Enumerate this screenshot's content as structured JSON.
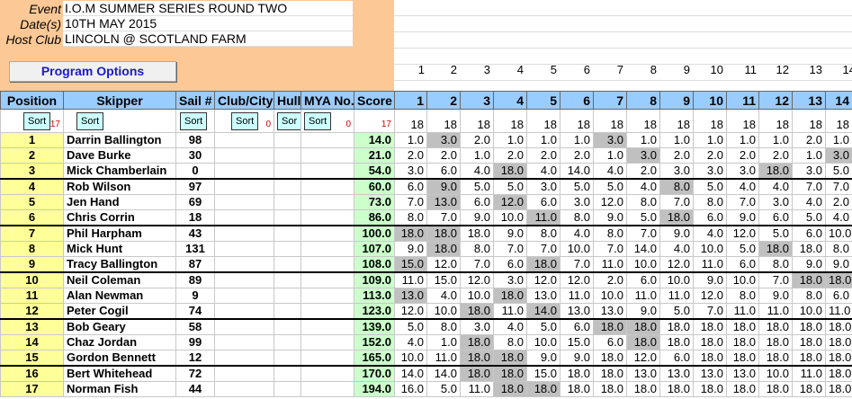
{
  "event": {
    "event_label": "Event",
    "event_value": "I.O.M SUMMER SERIES ROUND TWO",
    "date_label": "Date(s)",
    "date_value": "10TH MAY 2015",
    "host_label": "Host Club",
    "host_value": "LINCOLN @ SCOTLAND FARM"
  },
  "program_options": "Program Options",
  "race_numbers": [
    "1",
    "2",
    "3",
    "4",
    "5",
    "6",
    "7",
    "8",
    "9",
    "10",
    "11",
    "12",
    "13",
    "14"
  ],
  "headers": [
    "Position",
    "Skipper",
    "Sail #",
    "Club/City",
    "Hull",
    "MYA No.",
    "Score",
    "1",
    "2",
    "3",
    "4",
    "5",
    "6",
    "7",
    "8",
    "9",
    "10",
    "11",
    "12",
    "13",
    "14"
  ],
  "sort": {
    "label": "Sort",
    "hull_label": "Sor",
    "position_count": "17",
    "club_count": "0",
    "mya_count": "0",
    "score_count": "17",
    "race_entries": "18"
  },
  "colors": {
    "discard": "#c0c0c0",
    "header": "#99ccff",
    "position": "#ffff99",
    "score": "#ccffcc",
    "top_panel": "#fcc996"
  },
  "rows": [
    {
      "pos": "1",
      "skipper": "Darrin Ballington",
      "sail": "98",
      "score": "14.0",
      "races": [
        "1.0",
        "3.0",
        "2.0",
        "1.0",
        "1.0",
        "1.0",
        "3.0",
        "1.0",
        "1.0",
        "1.0",
        "1.0",
        "1.0",
        "2.0",
        "1.0"
      ],
      "discards": [
        2,
        7
      ]
    },
    {
      "pos": "2",
      "skipper": "Dave Burke",
      "sail": "30",
      "score": "21.0",
      "races": [
        "2.0",
        "2.0",
        "1.0",
        "2.0",
        "2.0",
        "2.0",
        "1.0",
        "3.0",
        "2.0",
        "2.0",
        "2.0",
        "2.0",
        "1.0",
        "3.0"
      ],
      "discards": [
        8,
        14
      ]
    },
    {
      "pos": "3",
      "skipper": "Mick Chamberlain",
      "sail": "0",
      "score": "54.0",
      "races": [
        "3.0",
        "6.0",
        "4.0",
        "18.0",
        "4.0",
        "14.0",
        "4.0",
        "2.0",
        "3.0",
        "3.0",
        "3.0",
        "18.0",
        "3.0",
        "5.0"
      ],
      "discards": [
        4,
        12
      ]
    },
    {
      "pos": "4",
      "skipper": "Rob Wilson",
      "sail": "97",
      "score": "60.0",
      "races": [
        "6.0",
        "9.0",
        "5.0",
        "5.0",
        "3.0",
        "5.0",
        "5.0",
        "4.0",
        "8.0",
        "5.0",
        "4.0",
        "4.0",
        "7.0",
        "7.0"
      ],
      "discards": [
        2,
        9
      ]
    },
    {
      "pos": "5",
      "skipper": "Jen Hand",
      "sail": "69",
      "score": "73.0",
      "races": [
        "7.0",
        "13.0",
        "6.0",
        "12.0",
        "6.0",
        "3.0",
        "12.0",
        "8.0",
        "7.0",
        "8.0",
        "7.0",
        "3.0",
        "4.0",
        "2.0"
      ],
      "discards": [
        2,
        4
      ]
    },
    {
      "pos": "6",
      "skipper": "Chris Corrin",
      "sail": "18",
      "score": "86.0",
      "races": [
        "8.0",
        "7.0",
        "9.0",
        "10.0",
        "11.0",
        "8.0",
        "9.0",
        "5.0",
        "18.0",
        "6.0",
        "9.0",
        "6.0",
        "5.0",
        "4.0"
      ],
      "discards": [
        5,
        9
      ]
    },
    {
      "pos": "7",
      "skipper": "Phil Harpham",
      "sail": "43",
      "score": "100.0",
      "races": [
        "18.0",
        "18.0",
        "18.0",
        "9.0",
        "8.0",
        "4.0",
        "8.0",
        "7.0",
        "9.0",
        "4.0",
        "12.0",
        "5.0",
        "6.0",
        "10.0"
      ],
      "discards": [
        1,
        2
      ]
    },
    {
      "pos": "8",
      "skipper": "Mick Hunt",
      "sail": "131",
      "score": "107.0",
      "races": [
        "9.0",
        "18.0",
        "8.0",
        "7.0",
        "7.0",
        "10.0",
        "7.0",
        "14.0",
        "4.0",
        "10.0",
        "5.0",
        "18.0",
        "18.0",
        "8.0"
      ],
      "discards": [
        2,
        12
      ]
    },
    {
      "pos": "9",
      "skipper": "Tracy Ballington",
      "sail": "87",
      "score": "108.0",
      "races": [
        "15.0",
        "12.0",
        "7.0",
        "6.0",
        "18.0",
        "7.0",
        "11.0",
        "10.0",
        "12.0",
        "11.0",
        "6.0",
        "8.0",
        "9.0",
        "9.0"
      ],
      "discards": [
        1,
        5
      ]
    },
    {
      "pos": "10",
      "skipper": "Neil Coleman",
      "sail": "89",
      "score": "109.0",
      "races": [
        "11.0",
        "15.0",
        "12.0",
        "3.0",
        "12.0",
        "12.0",
        "2.0",
        "6.0",
        "10.0",
        "9.0",
        "10.0",
        "7.0",
        "18.0",
        "18.0"
      ],
      "discards": [
        13,
        14
      ]
    },
    {
      "pos": "11",
      "skipper": "Alan Newman",
      "sail": "9",
      "score": "113.0",
      "races": [
        "13.0",
        "4.0",
        "10.0",
        "18.0",
        "13.0",
        "11.0",
        "10.0",
        "11.0",
        "11.0",
        "12.0",
        "8.0",
        "9.0",
        "8.0",
        "6.0"
      ],
      "discards": [
        1,
        4
      ]
    },
    {
      "pos": "12",
      "skipper": "Peter Cogil",
      "sail": "74",
      "score": "123.0",
      "races": [
        "12.0",
        "10.0",
        "18.0",
        "11.0",
        "14.0",
        "13.0",
        "13.0",
        "9.0",
        "5.0",
        "7.0",
        "11.0",
        "11.0",
        "10.0",
        "11.0"
      ],
      "discards": [
        3,
        5
      ]
    },
    {
      "pos": "13",
      "skipper": "Bob Geary",
      "sail": "58",
      "score": "139.0",
      "races": [
        "5.0",
        "8.0",
        "3.0",
        "4.0",
        "5.0",
        "6.0",
        "18.0",
        "18.0",
        "18.0",
        "18.0",
        "18.0",
        "18.0",
        "18.0",
        "18.0"
      ],
      "discards": [
        7,
        8
      ]
    },
    {
      "pos": "14",
      "skipper": "Chaz Jordan",
      "sail": "99",
      "score": "152.0",
      "races": [
        "4.0",
        "1.0",
        "18.0",
        "8.0",
        "10.0",
        "15.0",
        "6.0",
        "18.0",
        "18.0",
        "18.0",
        "18.0",
        "18.0",
        "18.0",
        "18.0"
      ],
      "discards": [
        3,
        8
      ]
    },
    {
      "pos": "15",
      "skipper": "Gordon Bennett",
      "sail": "12",
      "score": "165.0",
      "races": [
        "10.0",
        "11.0",
        "18.0",
        "18.0",
        "9.0",
        "9.0",
        "18.0",
        "12.0",
        "6.0",
        "18.0",
        "18.0",
        "18.0",
        "18.0",
        "18.0"
      ],
      "discards": [
        3,
        4
      ]
    },
    {
      "pos": "16",
      "skipper": "Bert Whitehead",
      "sail": "72",
      "score": "170.0",
      "races": [
        "14.0",
        "14.0",
        "18.0",
        "18.0",
        "15.0",
        "18.0",
        "18.0",
        "13.0",
        "13.0",
        "13.0",
        "13.0",
        "10.0",
        "11.0",
        "18.0"
      ],
      "discards": [
        3,
        4
      ]
    },
    {
      "pos": "17",
      "skipper": "Norman Fish",
      "sail": "44",
      "score": "194.0",
      "races": [
        "16.0",
        "5.0",
        "11.0",
        "18.0",
        "18.0",
        "18.0",
        "18.0",
        "18.0",
        "18.0",
        "18.0",
        "18.0",
        "18.0",
        "18.0",
        "18.0"
      ],
      "discards": [
        4,
        5
      ]
    }
  ]
}
